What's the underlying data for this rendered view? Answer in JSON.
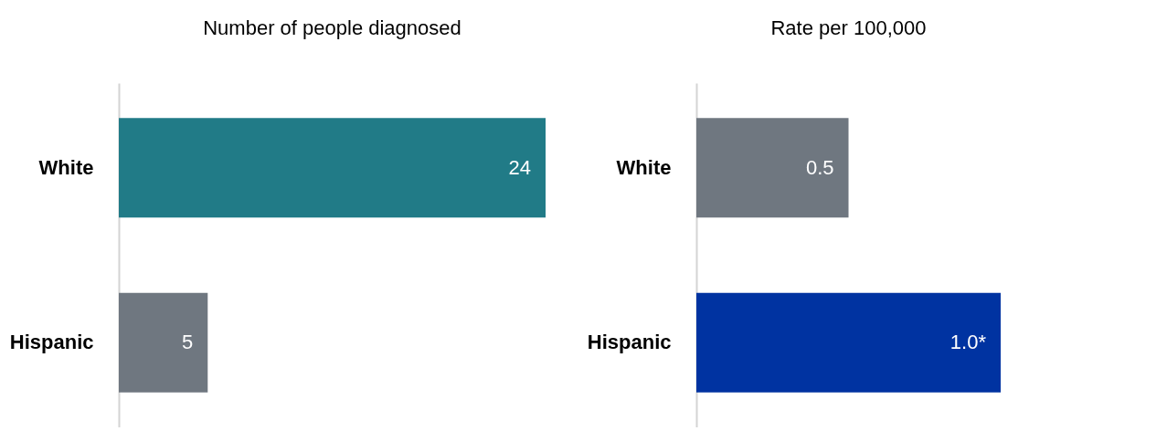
{
  "chart_data": [
    {
      "type": "bar",
      "orientation": "horizontal",
      "title": "Number of people diagnosed",
      "categories": [
        "White",
        "Hispanic"
      ],
      "values": [
        24,
        5
      ],
      "colors": [
        "#217b87",
        "#6f7780"
      ],
      "value_labels": [
        "24",
        "5"
      ],
      "xlim": [
        0,
        24
      ]
    },
    {
      "type": "bar",
      "orientation": "horizontal",
      "title": "Rate per 100,000",
      "categories": [
        "White",
        "Hispanic"
      ],
      "values": [
        0.5,
        1.0
      ],
      "colors": [
        "#6f7780",
        "#0033a1"
      ],
      "value_labels": [
        "0.5",
        "1.0*"
      ],
      "xlim": [
        0,
        1.0
      ]
    }
  ]
}
